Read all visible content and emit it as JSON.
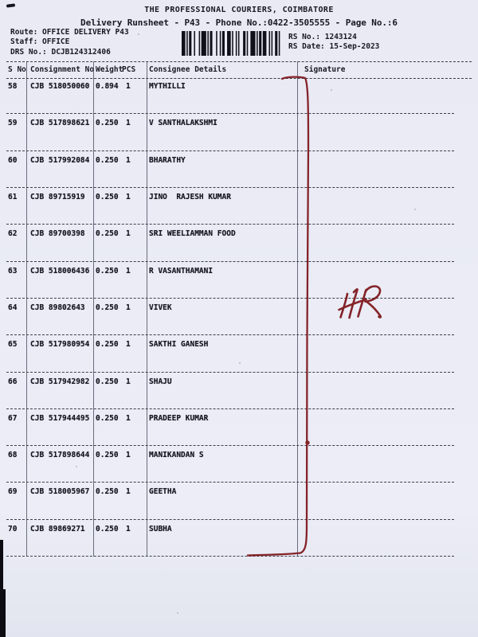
{
  "title": {
    "line1": "THE PROFESSIONAL COURIERS, COIMBATORE",
    "line2": "Delivery Runsheet - P43 - Phone No.:0422-3505555 - Page No.:6"
  },
  "meta": {
    "route": "Route: OFFICE DELIVERY P43",
    "staff": "Staff: OFFICE",
    "drs": "DRS No.: DCJB124312406",
    "rs_no": "RS No.: 1243124",
    "rs_date": "RS Date: 15-Sep-2023"
  },
  "table": {
    "headers": [
      "S No",
      "Consignment No",
      "Weight",
      "PCS",
      "Consignee Details",
      "Signature"
    ],
    "rows": [
      {
        "sno": "58",
        "consignment": "CJB 518050060",
        "weight": "0.894",
        "pcs": "1",
        "consignee": "MYTHILLI"
      },
      {
        "sno": "59",
        "consignment": "CJB 517898621",
        "weight": "0.250",
        "pcs": "1",
        "consignee": "V SANTHALAKSHMI"
      },
      {
        "sno": "60",
        "consignment": "CJB 517992084",
        "weight": "0.250",
        "pcs": "1",
        "consignee": "BHARATHY"
      },
      {
        "sno": "61",
        "consignment": "CJB 89715919",
        "weight": "0.250",
        "pcs": "1",
        "consignee": "JINO  RAJESH KUMAR"
      },
      {
        "sno": "62",
        "consignment": "CJB 89700398",
        "weight": "0.250",
        "pcs": "1",
        "consignee": "SRI WEELIAMMAN FOOD"
      },
      {
        "sno": "63",
        "consignment": "CJB 518006436",
        "weight": "0.250",
        "pcs": "1",
        "consignee": "R VASANTHAMANI"
      },
      {
        "sno": "64",
        "consignment": "CJB 89802643",
        "weight": "0.250",
        "pcs": "1",
        "consignee": "VIVEK"
      },
      {
        "sno": "65",
        "consignment": "CJB 517980954",
        "weight": "0.250",
        "pcs": "1",
        "consignee": "SAKTHI GANESH"
      },
      {
        "sno": "66",
        "consignment": "CJB 517942982",
        "weight": "0.250",
        "pcs": "1",
        "consignee": "SHAJU"
      },
      {
        "sno": "67",
        "consignment": "CJB 517944495",
        "weight": "0.250",
        "pcs": "1",
        "consignee": "PRADEEP KUMAR"
      },
      {
        "sno": "68",
        "consignment": "CJB 517898644",
        "weight": "0.250",
        "pcs": "1",
        "consignee": "MANIKANDAN S"
      },
      {
        "sno": "69",
        "consignment": "CJB 518005967",
        "weight": "0.250",
        "pcs": "1",
        "consignee": "GEETHA"
      },
      {
        "sno": "70",
        "consignment": "CJB 89869271",
        "weight": "0.250",
        "pcs": "1",
        "consignee": "SUBHA"
      }
    ]
  },
  "annotations": {
    "signature_initials": "HR"
  },
  "colors": {
    "paper": "#e9eaf4",
    "ink": "#181824",
    "pen": "#7c1217",
    "line": "#3e3e4a"
  }
}
